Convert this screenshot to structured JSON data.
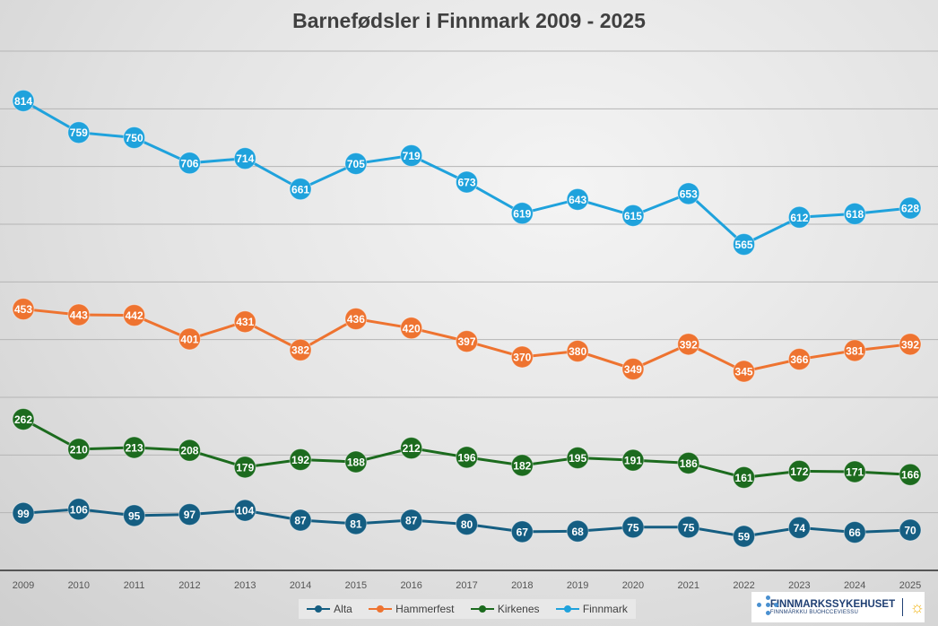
{
  "chart_data": {
    "type": "line",
    "title": "Barnefødsler i Finnmark 2009 - 2025",
    "categories": [
      "2009",
      "2010",
      "2011",
      "2012",
      "2013",
      "2014",
      "2015",
      "2016",
      "2017",
      "2018",
      "2019",
      "2020",
      "2021",
      "2022",
      "2023",
      "2024",
      "2025"
    ],
    "ylim": [
      0,
      900
    ],
    "grid": true,
    "legend_placement": "bottom",
    "series": [
      {
        "name": "Alta",
        "color": "#155e82",
        "values": [
          99,
          106,
          95,
          97,
          104,
          87,
          81,
          87,
          80,
          67,
          68,
          75,
          75,
          59,
          74,
          66,
          70
        ]
      },
      {
        "name": "Hammerfest",
        "color": "#ee7330",
        "values": [
          453,
          443,
          442,
          401,
          431,
          382,
          436,
          420,
          397,
          370,
          380,
          349,
          392,
          345,
          366,
          381,
          392
        ]
      },
      {
        "name": "Kirkenes",
        "color": "#1c6b1e",
        "values": [
          262,
          210,
          213,
          208,
          179,
          192,
          188,
          212,
          196,
          182,
          195,
          191,
          186,
          161,
          172,
          171,
          166
        ]
      },
      {
        "name": "Finnmark",
        "color": "#1fa2dc",
        "values": [
          814,
          759,
          750,
          706,
          714,
          661,
          705,
          719,
          673,
          619,
          643,
          615,
          653,
          565,
          612,
          618,
          628
        ]
      }
    ]
  },
  "logo": {
    "name": "FINNMARKSSYKEHUSET",
    "subtitle": "FINNMÁRKKU BUOHCCEVIESSU"
  }
}
